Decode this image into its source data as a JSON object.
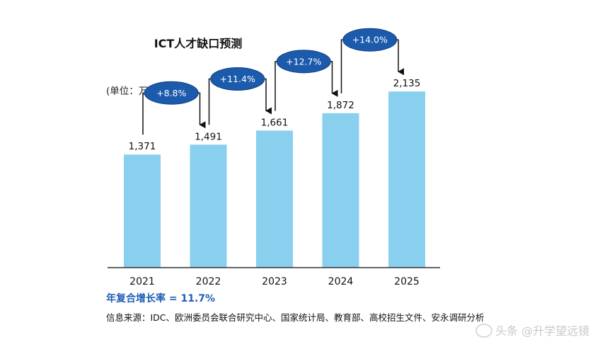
{
  "chart_data": {
    "type": "bar",
    "title": "ICT人才缺口预测",
    "unit_label": "(单位：万人)",
    "categories": [
      "2021",
      "2022",
      "2023",
      "2024",
      "2025"
    ],
    "values": [
      1371,
      1491,
      1661,
      1872,
      2135
    ],
    "value_labels": [
      "1,371",
      "1,491",
      "1,661",
      "1,872",
      "2,135"
    ],
    "growth_labels": [
      "+8.8%",
      "+11.4%",
      "+12.7%",
      "+14.0%"
    ],
    "ylim": [
      0,
      2300
    ],
    "grid": false,
    "bar_color": "#89d0ef",
    "bubble_color": "#1c5aac"
  },
  "cagr_text": "年复合增长率 = 11.7%",
  "source_text": "信息来源：IDC、欧洲委员会联合研究中心、国家统计局、教育部、高校招生文件、安永调研分析",
  "watermark_text": "头条 @升学望远镜"
}
